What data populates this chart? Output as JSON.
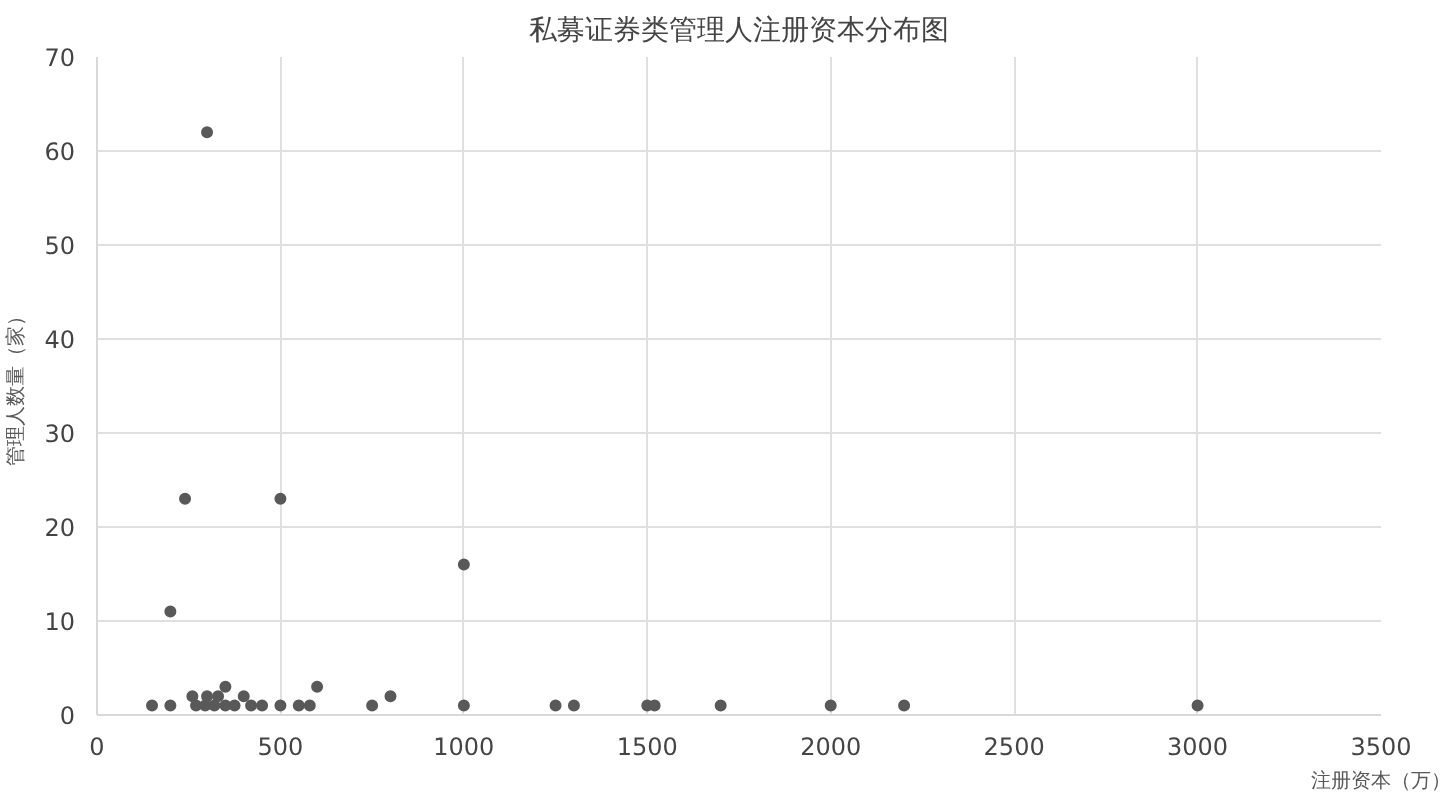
{
  "chart_data": {
    "type": "scatter",
    "title": "私募证券类管理人注册资本分布图",
    "xlabel": "注册资本（万）",
    "ylabel": "管理人数量（家）",
    "x": [
      150,
      200,
      200,
      240,
      260,
      270,
      295,
      300,
      300,
      320,
      330,
      350,
      350,
      375,
      400,
      420,
      450,
      500,
      500,
      550,
      580,
      600,
      750,
      800,
      1000,
      1000,
      1250,
      1300,
      1500,
      1520,
      1700,
      2000,
      2200,
      3000
    ],
    "series": [
      {
        "color": "#595959",
        "values": [
          1,
          1,
          11,
          23,
          2,
          1,
          1,
          62,
          2,
          1,
          2,
          3,
          1,
          1,
          2,
          1,
          1,
          23,
          1,
          1,
          1,
          3,
          1,
          2,
          1,
          16,
          1,
          1,
          1,
          1,
          1,
          1,
          1,
          1
        ]
      }
    ],
    "xlim": [
      0,
      3500
    ],
    "xticks": [
      0,
      500,
      1000,
      1500,
      2000,
      2500,
      3000,
      3500
    ],
    "ylim": [
      0,
      70
    ],
    "yticks": [
      0,
      10,
      20,
      30,
      40,
      50,
      60,
      70
    ],
    "grid": true,
    "marker": "circle"
  }
}
